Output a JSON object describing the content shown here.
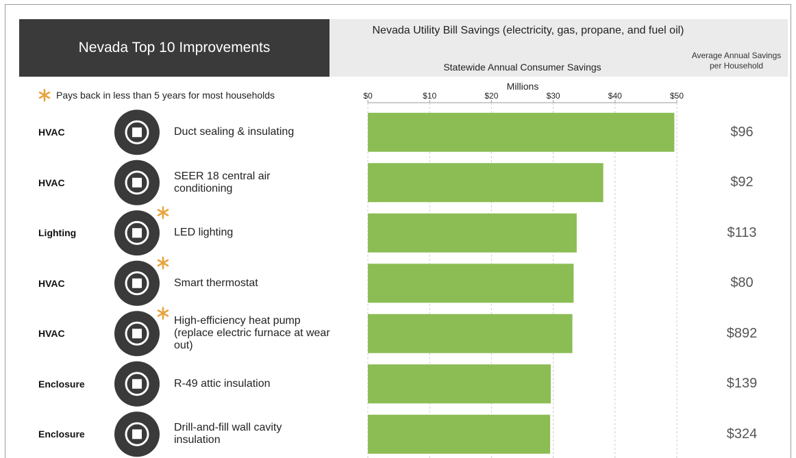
{
  "chart_data": {
    "type": "bar",
    "title": "Nevada Top 10 Improvements",
    "subtitle": "Nevada Utility Bill Savings (electricity, gas, propane, and fuel oil)",
    "axis_title": "Statewide Annual Consumer Savings",
    "axis_unit": "Millions",
    "legend_note": "Pays back in less than 5 years for most households",
    "groups": [
      "HVAC",
      "HVAC",
      "Lighting",
      "HVAC",
      "HVAC",
      "Enclosure",
      "Enclosure"
    ],
    "categories": [
      "Duct sealing & insulating",
      "SEER 18 central air conditioning",
      "LED lighting",
      "Smart thermostat",
      "High-efficiency heat pump (replace electric furnace at wear out)",
      "R-49 attic insulation",
      "Drill-and-fill wall cavity insulation"
    ],
    "payback": [
      false,
      false,
      true,
      true,
      true,
      false,
      false
    ],
    "values": [
      49.6,
      38.1,
      33.8,
      33.3,
      33.1,
      29.6,
      29.5
    ],
    "color": "#8cbd55",
    "xlim": [
      0,
      50
    ],
    "xticks": [
      {
        "value": 0,
        "label": "$0"
      },
      {
        "value": 10,
        "label": "$10"
      },
      {
        "value": 20,
        "label": "$20"
      },
      {
        "value": 30,
        "label": "$30"
      },
      {
        "value": 40,
        "label": "$40"
      },
      {
        "value": 50,
        "label": "$50"
      }
    ],
    "grid": true,
    "household_savings": {
      "name": "Average Annual Savings per Household",
      "values": [
        96,
        92,
        113,
        80,
        892,
        139,
        324
      ],
      "value_labels": [
        "$96",
        "$92",
        "$113",
        "$80",
        "$892",
        "$139",
        "$324"
      ]
    }
  }
}
